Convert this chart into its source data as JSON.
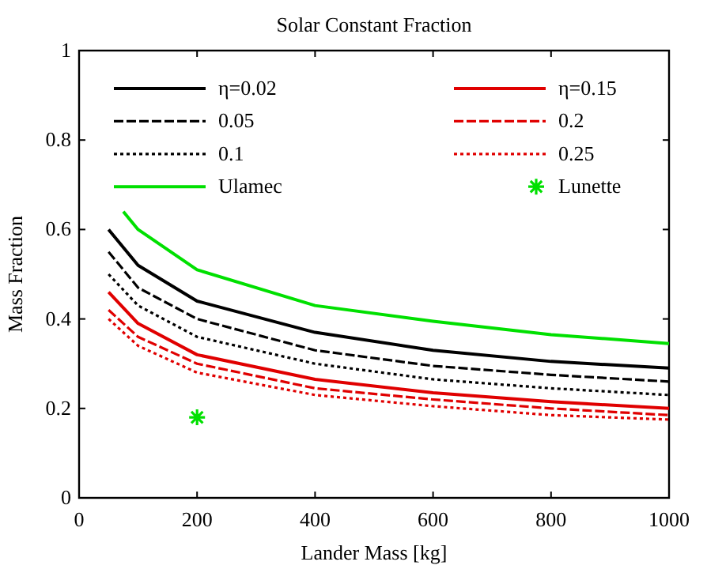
{
  "chart_data": {
    "type": "line",
    "title": "Solar Constant Fraction",
    "xlabel": "Lander Mass [kg]",
    "ylabel": "Mass Fraction",
    "xlim": [
      0,
      1000
    ],
    "xticks": [
      0,
      200,
      400,
      600,
      800,
      1000
    ],
    "ylim": [
      0,
      1
    ],
    "yticks": [
      0,
      0.2,
      0.4,
      0.6,
      0.8,
      1
    ],
    "grid": false,
    "legend": "top",
    "series": [
      {
        "name": "η=0.02",
        "color": "#000000",
        "line_style": "solid",
        "x": [
          50,
          100,
          200,
          400,
          600,
          800,
          1000
        ],
        "values": [
          0.6,
          0.52,
          0.44,
          0.37,
          0.33,
          0.305,
          0.29
        ]
      },
      {
        "name": "0.05",
        "color": "#000000",
        "line_style": "dashed",
        "x": [
          50,
          100,
          200,
          400,
          600,
          800,
          1000
        ],
        "values": [
          0.55,
          0.47,
          0.4,
          0.33,
          0.295,
          0.275,
          0.26
        ]
      },
      {
        "name": "0.1",
        "color": "#000000",
        "line_style": "dotted",
        "x": [
          50,
          100,
          200,
          400,
          600,
          800,
          1000
        ],
        "values": [
          0.5,
          0.43,
          0.36,
          0.3,
          0.265,
          0.245,
          0.23
        ]
      },
      {
        "name": "Ulamec",
        "color": "#00e000",
        "line_style": "solid",
        "x": [
          75,
          100,
          200,
          400,
          600,
          800,
          1000
        ],
        "values": [
          0.64,
          0.6,
          0.51,
          0.43,
          0.395,
          0.365,
          0.345
        ]
      },
      {
        "name": "η=0.15",
        "color": "#e00000",
        "line_style": "solid",
        "x": [
          50,
          100,
          200,
          400,
          600,
          800,
          1000
        ],
        "values": [
          0.46,
          0.39,
          0.32,
          0.265,
          0.235,
          0.215,
          0.2
        ]
      },
      {
        "name": "0.2",
        "color": "#e00000",
        "line_style": "dashed",
        "x": [
          50,
          100,
          200,
          400,
          600,
          800,
          1000
        ],
        "values": [
          0.42,
          0.36,
          0.3,
          0.245,
          0.22,
          0.2,
          0.185
        ]
      },
      {
        "name": "0.25",
        "color": "#e00000",
        "line_style": "dotted",
        "x": [
          50,
          100,
          200,
          400,
          600,
          800,
          1000
        ],
        "values": [
          0.4,
          0.34,
          0.28,
          0.23,
          0.205,
          0.185,
          0.175
        ]
      },
      {
        "name": "Lunette",
        "type": "scatter",
        "color": "#00e000",
        "marker": "cross",
        "x": [
          200
        ],
        "values": [
          0.18
        ]
      }
    ]
  }
}
